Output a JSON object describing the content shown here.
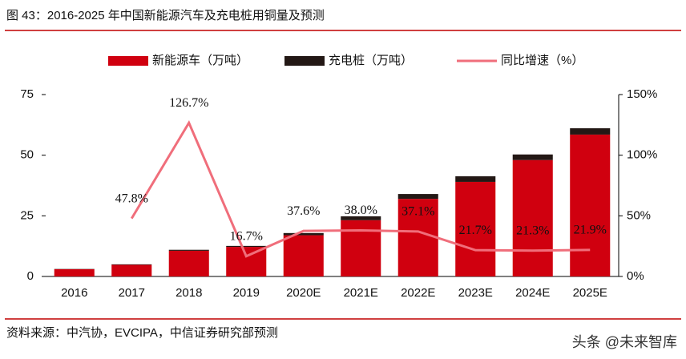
{
  "chart_data": {
    "type": "bar-line",
    "title": "图 43：2016-2025 年中国新能源汽车及充电桩用铜量及预测",
    "source": "资料来源：中汽协，EVCIPA，中信证券研究部预测",
    "watermark": "头条 @未来智库",
    "categories": [
      "2016",
      "2017",
      "2018",
      "2019",
      "2020E",
      "2021E",
      "2022E",
      "2023E",
      "2024E",
      "2025E"
    ],
    "series": [
      {
        "name": "新能源车（万吨）",
        "color": "#d0000f",
        "values": [
          3.0,
          4.8,
          10.6,
          12.2,
          17.0,
          23.2,
          32.0,
          39.0,
          48.0,
          58.5
        ]
      },
      {
        "name": "充电桩（万吨）",
        "color": "#231815",
        "values": [
          0.1,
          0.2,
          0.4,
          0.4,
          0.9,
          1.6,
          2.0,
          2.3,
          2.3,
          2.6
        ]
      },
      {
        "name": "同比增速（%）",
        "color": "#f06e7b",
        "axis": "y2",
        "values": [
          null,
          47.8,
          126.7,
          16.7,
          37.6,
          38.0,
          37.1,
          21.7,
          21.3,
          21.9
        ],
        "value_labels": [
          null,
          "47.8%",
          "126.7%",
          "16.7%",
          "37.6%",
          "38.0%",
          "37.1%",
          "21.7%",
          "21.3%",
          "21.9%"
        ]
      }
    ],
    "ylim": [
      0,
      75
    ],
    "yticks": [
      0,
      25,
      50,
      75
    ],
    "y2lim": [
      0,
      150
    ],
    "y2ticks": [
      {
        "value": 0,
        "label": "0%"
      },
      {
        "value": 50,
        "label": "50%"
      },
      {
        "value": 100,
        "label": "100%"
      },
      {
        "value": 150,
        "label": "150%"
      }
    ],
    "grid": false
  }
}
